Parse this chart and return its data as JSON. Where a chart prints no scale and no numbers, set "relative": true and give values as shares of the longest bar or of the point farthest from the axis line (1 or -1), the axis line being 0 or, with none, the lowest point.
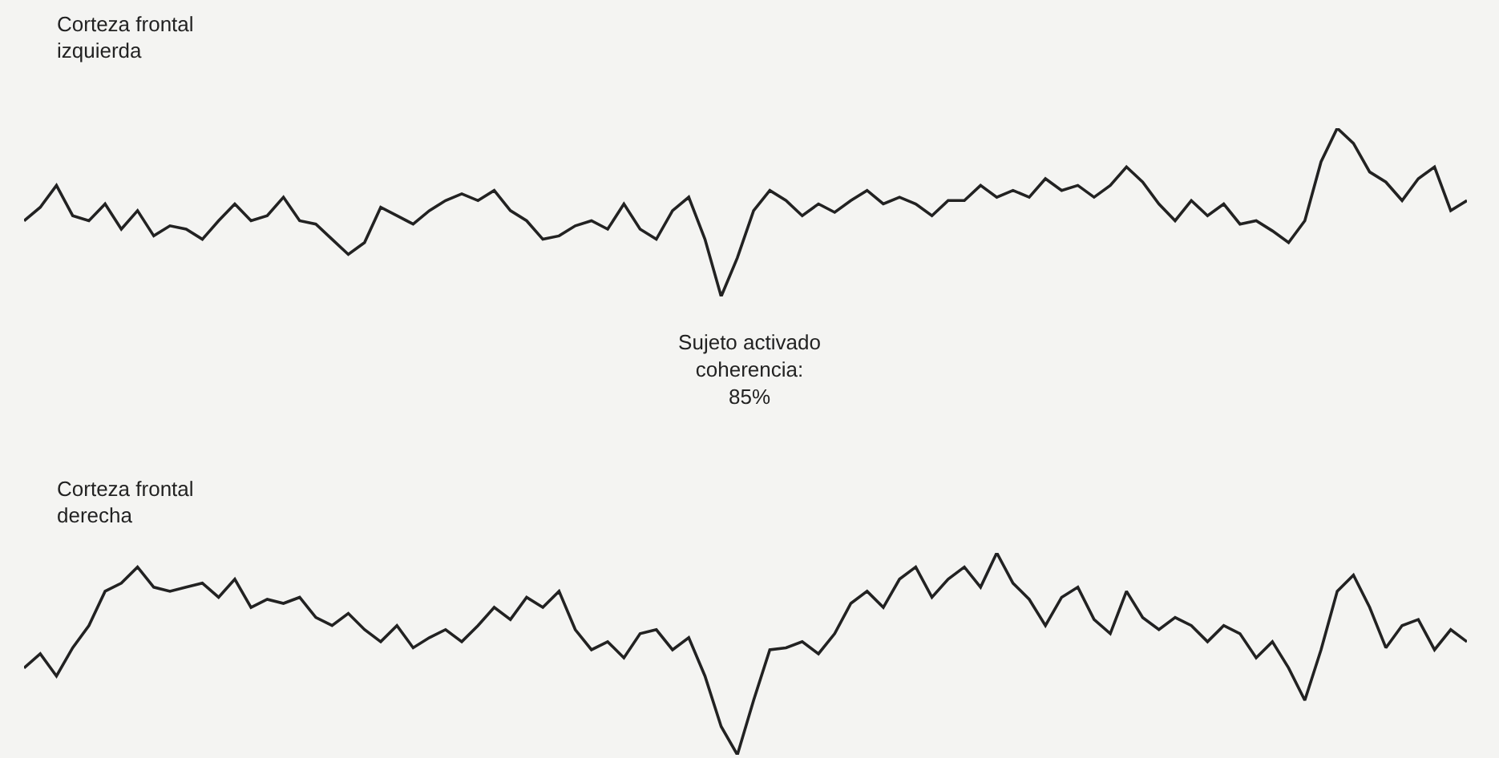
{
  "chart_data": [
    {
      "type": "line",
      "title": "Corteza frontal\nizquierda",
      "relative": true,
      "color": "#222222",
      "categories": [
        null,
        null,
        null,
        null,
        null,
        null,
        null,
        null,
        null,
        null,
        null,
        null,
        null,
        null,
        null,
        null,
        null,
        null,
        null,
        null,
        null,
        null,
        null,
        null,
        null,
        null,
        null,
        null,
        null,
        null,
        null,
        null,
        null,
        null,
        null,
        null,
        null,
        null,
        null,
        null,
        null,
        null,
        null,
        null,
        null,
        null,
        null,
        null,
        null,
        null,
        null,
        null,
        null,
        null,
        null,
        null,
        null,
        null,
        null,
        null,
        null,
        null,
        null,
        null,
        null,
        null,
        null,
        null,
        null,
        null,
        null,
        null,
        null,
        null,
        null,
        null,
        null,
        null,
        null,
        null,
        null,
        null,
        null,
        null,
        null,
        null,
        null,
        null,
        null,
        null
      ],
      "values": [
        0.45,
        0.53,
        0.66,
        0.48,
        0.45,
        0.55,
        0.4,
        0.51,
        0.36,
        0.42,
        0.4,
        0.34,
        0.45,
        0.55,
        0.45,
        0.48,
        0.59,
        0.45,
        0.43,
        0.34,
        0.25,
        0.32,
        0.53,
        0.48,
        0.43,
        0.51,
        0.57,
        0.61,
        0.57,
        0.63,
        0.51,
        0.45,
        0.34,
        0.36,
        0.42,
        0.45,
        0.4,
        0.55,
        0.4,
        0.34,
        0.51,
        0.59,
        0.34,
        0,
        0.23,
        0.51,
        0.63,
        0.57,
        0.48,
        0.55,
        0.5,
        0.57,
        0.63,
        0.55,
        0.59,
        0.55,
        0.48,
        0.57,
        0.57,
        0.66,
        0.59,
        0.63,
        0.59,
        0.7,
        0.63,
        0.66,
        0.59,
        0.66,
        0.77,
        0.68,
        0.55,
        0.45,
        0.57,
        0.48,
        0.55,
        0.43,
        0.45,
        0.39,
        0.32,
        0.45,
        0.8,
        1,
        0.91,
        0.74,
        0.68,
        0.57,
        0.7,
        0.77,
        0.51,
        0.57
      ],
      "annotations": [
        "Sujeto activado\ncoherencia:\n85%"
      ]
    },
    {
      "type": "line",
      "title": "Corteza frontal\nderecha",
      "relative": true,
      "color": "#222222",
      "categories": [
        null,
        null,
        null,
        null,
        null,
        null,
        null,
        null,
        null,
        null,
        null,
        null,
        null,
        null,
        null,
        null,
        null,
        null,
        null,
        null,
        null,
        null,
        null,
        null,
        null,
        null,
        null,
        null,
        null,
        null,
        null,
        null,
        null,
        null,
        null,
        null,
        null,
        null,
        null,
        null,
        null,
        null,
        null,
        null,
        null,
        null,
        null,
        null,
        null,
        null,
        null,
        null,
        null,
        null,
        null,
        null,
        null,
        null,
        null,
        null,
        null,
        null,
        null,
        null,
        null,
        null,
        null,
        null,
        null,
        null,
        null,
        null,
        null,
        null,
        null,
        null,
        null,
        null,
        null,
        null,
        null,
        null,
        null,
        null,
        null,
        null,
        null,
        null,
        null,
        null
      ],
      "values": [
        0.43,
        0.5,
        0.39,
        0.53,
        0.64,
        0.81,
        0.85,
        0.93,
        0.83,
        0.81,
        0.83,
        0.85,
        0.78,
        0.87,
        0.73,
        0.77,
        0.75,
        0.78,
        0.68,
        0.64,
        0.7,
        0.62,
        0.56,
        0.64,
        0.53,
        0.58,
        0.62,
        0.56,
        0.64,
        0.73,
        0.67,
        0.78,
        0.73,
        0.81,
        0.62,
        0.52,
        0.56,
        0.48,
        0.6,
        0.62,
        0.52,
        0.58,
        0.39,
        0.14,
        0,
        0.27,
        0.52,
        0.53,
        0.56,
        0.5,
        0.6,
        0.75,
        0.81,
        0.73,
        0.87,
        0.93,
        0.78,
        0.87,
        0.93,
        0.83,
        1,
        0.85,
        0.77,
        0.64,
        0.78,
        0.83,
        0.67,
        0.6,
        0.81,
        0.68,
        0.62,
        0.68,
        0.64,
        0.56,
        0.64,
        0.6,
        0.48,
        0.56,
        0.43,
        0.27,
        0.52,
        0.81,
        0.89,
        0.73,
        0.53,
        0.64,
        0.67,
        0.52,
        0.62,
        0.56
      ]
    }
  ]
}
